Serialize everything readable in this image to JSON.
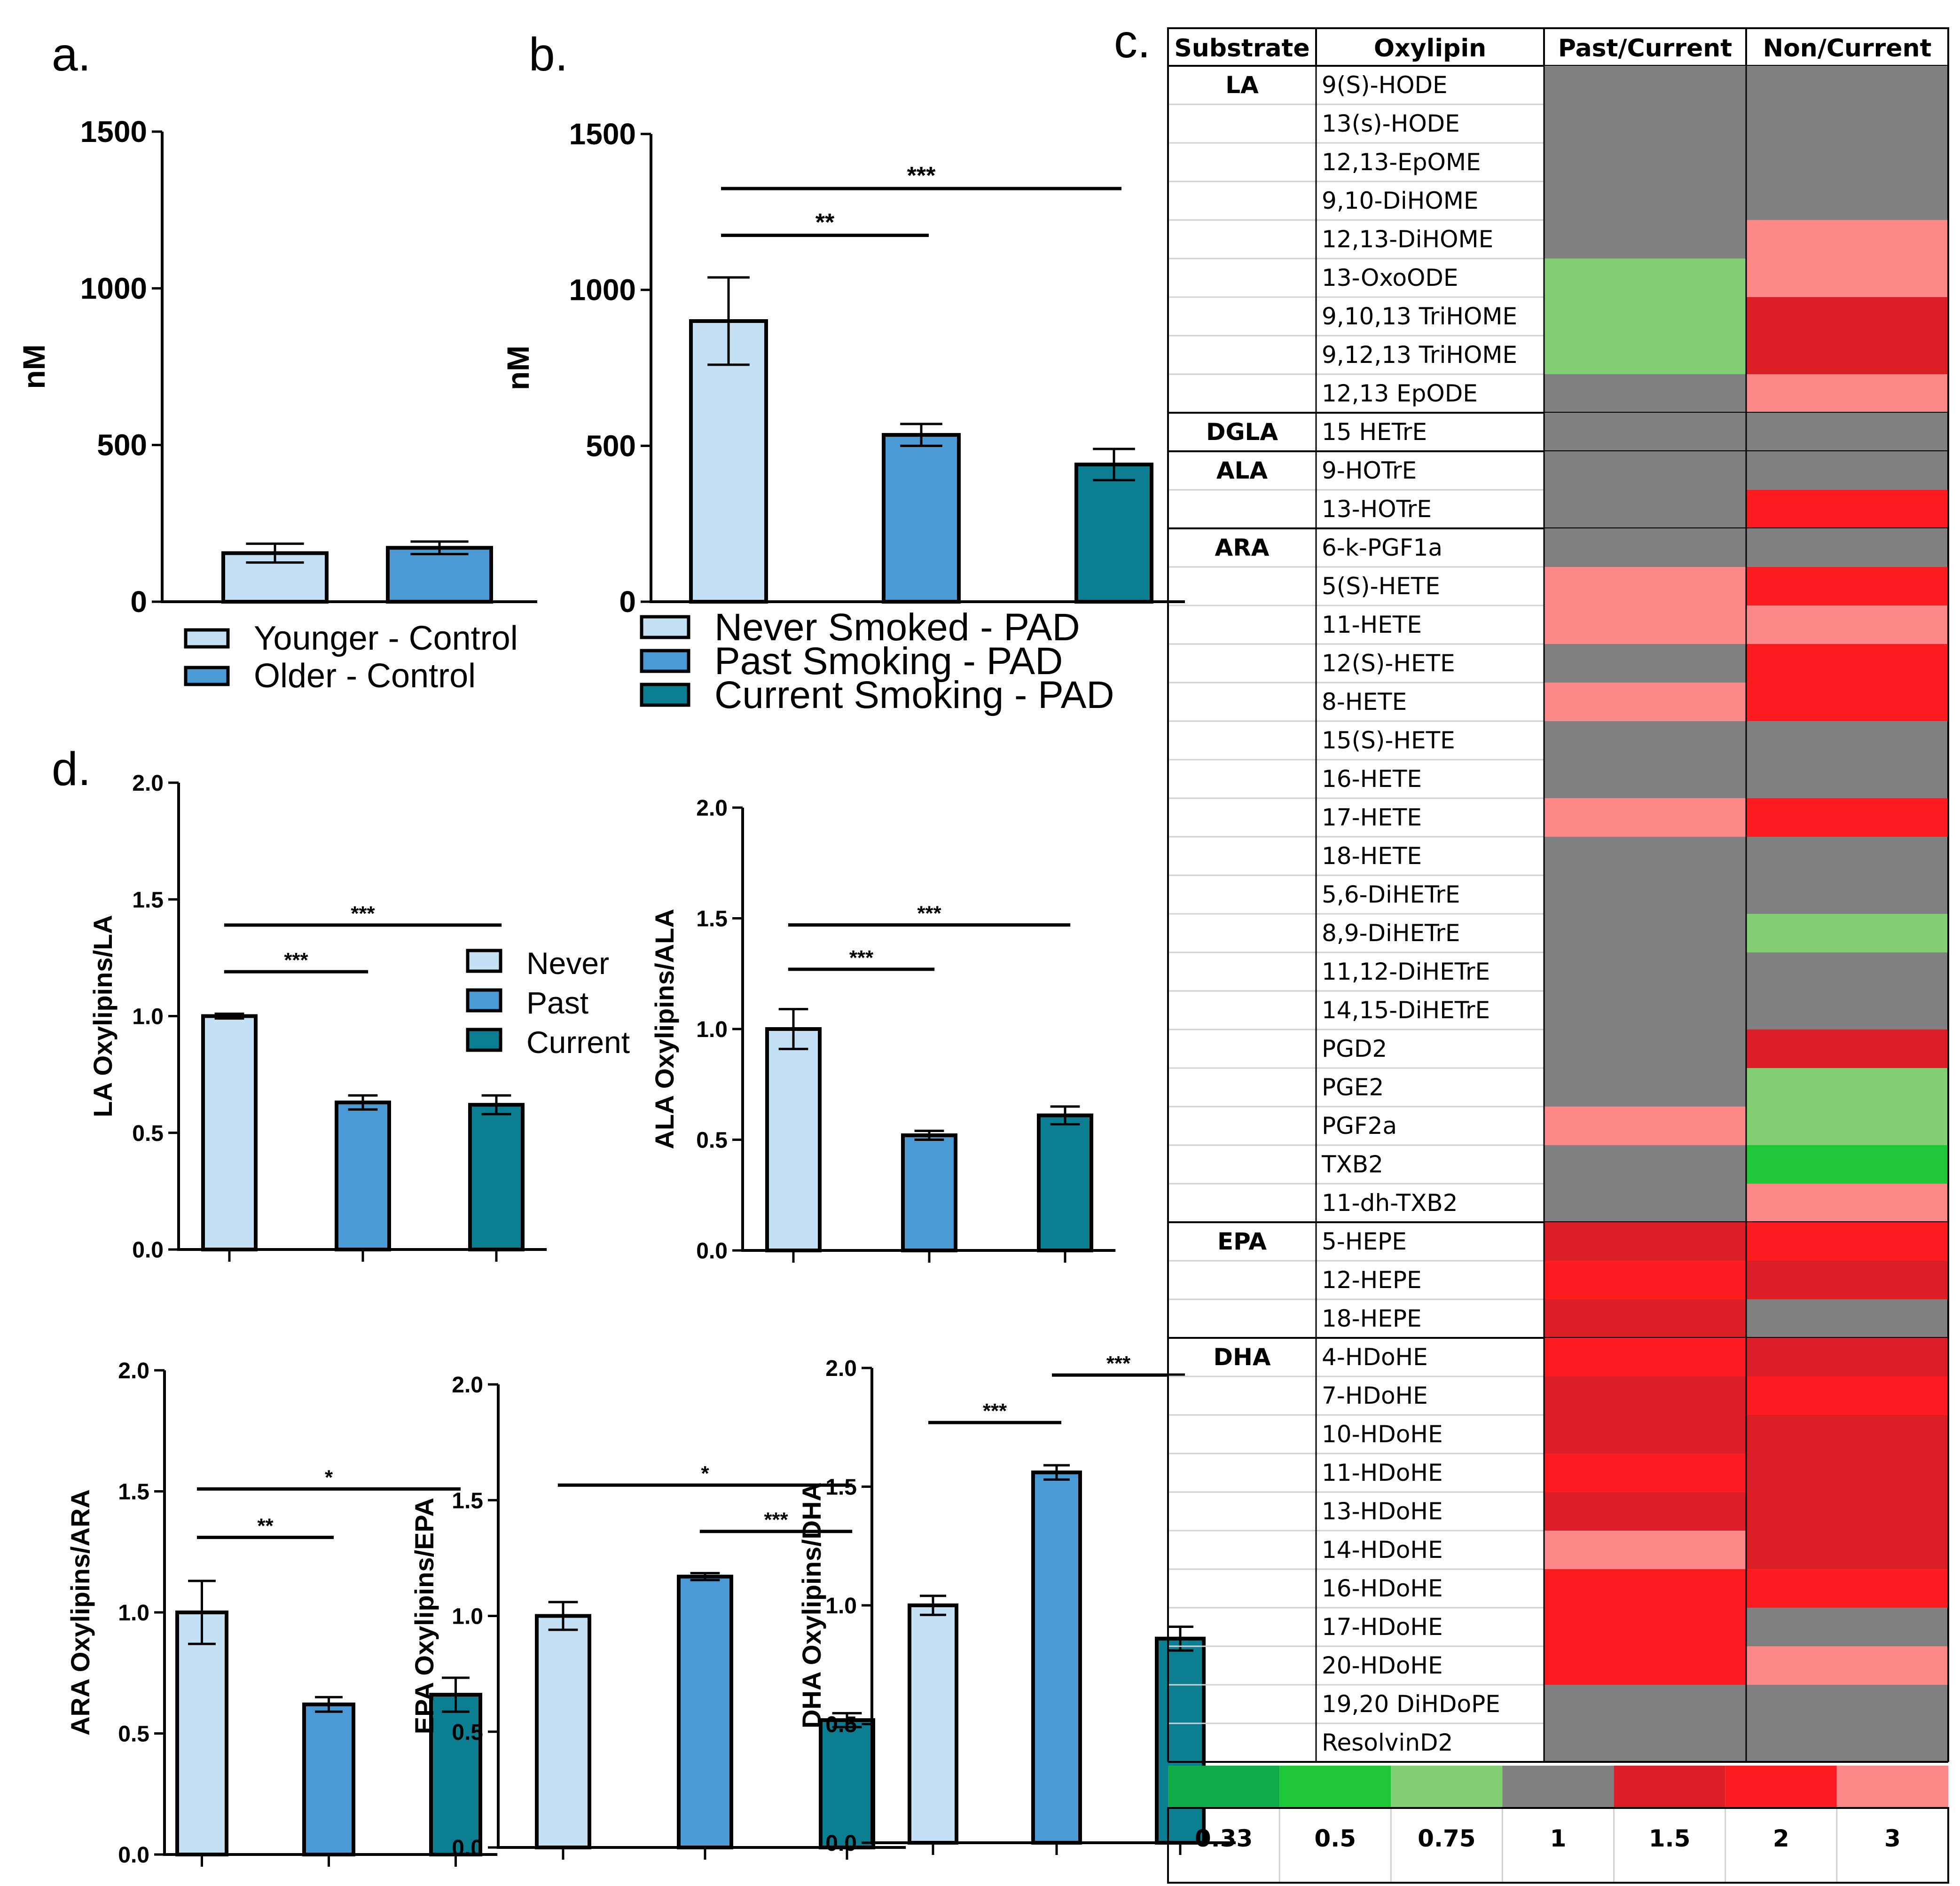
{
  "colors": {
    "never": "#c3e0f4",
    "past": "#4a9ad6",
    "current": "#0b7e92",
    "heat_0.33": "#0fab48",
    "heat_0.5": "#1ec738",
    "heat_0.75": "#82ce72",
    "heat_1": "#808080",
    "heat_1.5": "#dc1f26",
    "heat_2": "#ff1c20",
    "heat_3": "#fd8888"
  },
  "chart_data": [
    {
      "id": "a",
      "label": "a.",
      "type": "bar",
      "ylabel": "nM",
      "ylim": [
        0,
        1500
      ],
      "yticks": [
        "0",
        "500",
        "1000",
        "1500"
      ],
      "series": [
        {
          "name": "Younger - Control",
          "value": 155,
          "err": 30,
          "color": "never"
        },
        {
          "name": "Older - Control",
          "value": 172,
          "err": 20,
          "color": "past"
        }
      ],
      "sig": []
    },
    {
      "id": "b",
      "label": "b.",
      "type": "bar",
      "ylabel": "nM",
      "ylim": [
        0,
        1500
      ],
      "yticks": [
        "0",
        "500",
        "1000",
        "1500"
      ],
      "series": [
        {
          "name": "Never Smoked - PAD",
          "value": 900,
          "err": 140,
          "color": "never"
        },
        {
          "name": "Past Smoking - PAD",
          "value": 535,
          "err": 35,
          "color": "past"
        },
        {
          "name": "Current Smoking - PAD",
          "value": 440,
          "err": 50,
          "color": "current"
        }
      ],
      "sig": [
        {
          "from": 0,
          "to": 1,
          "stars": "**"
        },
        {
          "from": 0,
          "to": 2,
          "stars": "***"
        }
      ]
    },
    {
      "id": "d1",
      "label": "d.",
      "type": "bar",
      "ylabel": "LA Oxylipins/LA",
      "ylim": [
        0,
        2
      ],
      "yticks": [
        "0.0",
        "0.5",
        "1.0",
        "1.5",
        "2.0"
      ],
      "series": [
        {
          "name": "Never",
          "value": 1.0,
          "err": 0.01,
          "color": "never"
        },
        {
          "name": "Past",
          "value": 0.63,
          "err": 0.03,
          "color": "past"
        },
        {
          "name": "Current",
          "value": 0.62,
          "err": 0.04,
          "color": "current"
        }
      ],
      "sig": [
        {
          "from": 0,
          "to": 1,
          "stars": "***"
        },
        {
          "from": 0,
          "to": 2,
          "stars": "***"
        }
      ]
    },
    {
      "id": "d2",
      "label": "",
      "type": "bar",
      "ylabel": "ALA Oxylipins/ALA",
      "ylim": [
        0,
        2
      ],
      "yticks": [
        "0.0",
        "0.5",
        "1.0",
        "1.5",
        "2.0"
      ],
      "series": [
        {
          "name": "Never",
          "value": 1.0,
          "err": 0.09,
          "color": "never"
        },
        {
          "name": "Past",
          "value": 0.52,
          "err": 0.02,
          "color": "past"
        },
        {
          "name": "Current",
          "value": 0.61,
          "err": 0.04,
          "color": "current"
        }
      ],
      "sig": [
        {
          "from": 0,
          "to": 1,
          "stars": "***"
        },
        {
          "from": 0,
          "to": 2,
          "stars": "***"
        }
      ]
    },
    {
      "id": "d3",
      "label": "",
      "type": "bar",
      "ylabel": "ARA Oxylipins/ARA",
      "ylim": [
        0,
        2
      ],
      "yticks": [
        "0.0",
        "0.5",
        "1.0",
        "1.5",
        "2.0"
      ],
      "series": [
        {
          "name": "Never",
          "value": 1.0,
          "err": 0.13,
          "color": "never"
        },
        {
          "name": "Past",
          "value": 0.62,
          "err": 0.03,
          "color": "past"
        },
        {
          "name": "Current",
          "value": 0.66,
          "err": 0.07,
          "color": "current"
        }
      ],
      "sig": [
        {
          "from": 0,
          "to": 1,
          "stars": "**"
        },
        {
          "from": 0,
          "to": 2,
          "stars": "*"
        }
      ]
    },
    {
      "id": "d4",
      "label": "",
      "type": "bar",
      "ylabel": "EPA Oxylipins/EPA",
      "ylim": [
        0,
        2
      ],
      "yticks": [
        "0.0",
        "0.5",
        "1.0",
        "1.5",
        "2.0"
      ],
      "series": [
        {
          "name": "Never",
          "value": 1.0,
          "err": 0.06,
          "color": "never"
        },
        {
          "name": "Past",
          "value": 1.17,
          "err": 0.015,
          "color": "past"
        },
        {
          "name": "Current",
          "value": 0.55,
          "err": 0.03,
          "color": "current"
        }
      ],
      "sig": [
        {
          "from": 1,
          "to": 2,
          "stars": "***"
        },
        {
          "from": 0,
          "to": 2,
          "stars": "*"
        }
      ]
    },
    {
      "id": "d5",
      "label": "",
      "type": "bar",
      "ylabel": "DHA Oxylipins/DHA",
      "ylim": [
        0,
        2
      ],
      "yticks": [
        "0.0",
        "0.5",
        "1.0",
        "1.5",
        "2.0"
      ],
      "series": [
        {
          "name": "Never",
          "value": 1.0,
          "err": 0.04,
          "color": "never"
        },
        {
          "name": "Past",
          "value": 1.56,
          "err": 0.03,
          "color": "past"
        },
        {
          "name": "Current",
          "value": 0.86,
          "err": 0.05,
          "color": "current"
        }
      ],
      "sig": [
        {
          "from": 0,
          "to": 1,
          "stars": "***"
        },
        {
          "from": 1,
          "to": 2,
          "stars": "***"
        }
      ]
    },
    {
      "id": "c",
      "label": "c.",
      "type": "heatmap",
      "headers": [
        "Substrate",
        "Oxylipin",
        "Past/Current",
        "Non/Current"
      ],
      "groups": [
        {
          "substrate": "LA",
          "rows": [
            [
              "9(S)-HODE",
              "1",
              "1"
            ],
            [
              "13(s)-HODE",
              "1",
              "1"
            ],
            [
              "12,13-EpOME",
              "1",
              "1"
            ],
            [
              "9,10-DiHOME",
              "1",
              "1"
            ],
            [
              "12,13-DiHOME",
              "1",
              "3"
            ],
            [
              "13-OxoODE",
              "0.75",
              "3"
            ],
            [
              "9,10,13 TriHOME",
              "0.75",
              "1.5"
            ],
            [
              "9,12,13 TriHOME",
              "0.75",
              "1.5"
            ],
            [
              "12,13 EpODE",
              "1",
              "3"
            ]
          ]
        },
        {
          "substrate": "DGLA",
          "rows": [
            [
              "15 HETrE",
              "1",
              "1"
            ]
          ]
        },
        {
          "substrate": "ALA",
          "rows": [
            [
              "9-HOTrE",
              "1",
              "1"
            ],
            [
              "13-HOTrE",
              "1",
              "2"
            ]
          ]
        },
        {
          "substrate": "ARA",
          "rows": [
            [
              "6-k-PGF1a",
              "1",
              "1"
            ],
            [
              "5(S)-HETE",
              "3",
              "2"
            ],
            [
              "11-HETE",
              "3",
              "3"
            ],
            [
              "12(S)-HETE",
              "1",
              "2"
            ],
            [
              "8-HETE",
              "3",
              "2"
            ],
            [
              "15(S)-HETE",
              "1",
              "1"
            ],
            [
              "16-HETE",
              "1",
              "1"
            ],
            [
              "17-HETE",
              "3",
              "2"
            ],
            [
              "18-HETE",
              "1",
              "1"
            ],
            [
              "5,6-DiHETrE",
              "1",
              "1"
            ],
            [
              "8,9-DiHETrE",
              "1",
              "0.75"
            ],
            [
              "11,12-DiHETrE",
              "1",
              "1"
            ],
            [
              "14,15-DiHETrE",
              "1",
              "1"
            ],
            [
              "PGD2",
              "1",
              "1.5"
            ],
            [
              "PGE2",
              "1",
              "0.75"
            ],
            [
              "PGF2a",
              "3",
              "0.75"
            ],
            [
              "TXB2",
              "1",
              "0.5"
            ],
            [
              "11-dh-TXB2",
              "1",
              "3"
            ]
          ]
        },
        {
          "substrate": "EPA",
          "rows": [
            [
              "5-HEPE",
              "1.5",
              "2"
            ],
            [
              "12-HEPE",
              "2",
              "1.5"
            ],
            [
              "18-HEPE",
              "1.5",
              "1"
            ]
          ]
        },
        {
          "substrate": "DHA",
          "rows": [
            [
              "4-HDoHE",
              "2",
              "1.5"
            ],
            [
              "7-HDoHE",
              "1.5",
              "2"
            ],
            [
              "10-HDoHE",
              "1.5",
              "1.5"
            ],
            [
              "11-HDoHE",
              "2",
              "1.5"
            ],
            [
              "13-HDoHE",
              "1.5",
              "1.5"
            ],
            [
              "14-HDoHE",
              "3",
              "1.5"
            ],
            [
              "16-HDoHE",
              "2",
              "2"
            ],
            [
              "17-HDoHE",
              "2",
              "1"
            ],
            [
              "20-HDoHE",
              "2",
              "3"
            ],
            [
              "19,20 DiHDoPE",
              "1",
              "1"
            ],
            [
              "ResolvinD2",
              "1",
              "1"
            ]
          ]
        }
      ],
      "scale": [
        "0.33",
        "0.5",
        "0.75",
        "1",
        "1.5",
        "2",
        "3"
      ]
    }
  ]
}
